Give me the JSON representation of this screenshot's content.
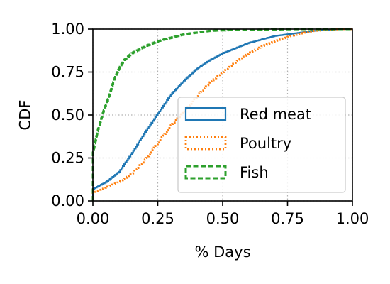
{
  "chart_data": {
    "type": "line",
    "title": "",
    "xlabel": "% Days",
    "ylabel": "CDF",
    "xlim": [
      0,
      1
    ],
    "ylim": [
      0,
      1
    ],
    "x_ticks": [
      "0.00",
      "0.25",
      "0.50",
      "0.75",
      "1.00"
    ],
    "y_ticks": [
      "0.00",
      "0.25",
      "0.50",
      "0.75",
      "1.00"
    ],
    "grid": true,
    "legend_position": "lower-right",
    "series": [
      {
        "name": "Red meat",
        "color": "#1f77b4",
        "style": "solid",
        "x": [
          0,
          0.05,
          0.1,
          0.15,
          0.2,
          0.25,
          0.3,
          0.35,
          0.4,
          0.45,
          0.5,
          0.55,
          0.6,
          0.65,
          0.7,
          0.75,
          0.8,
          0.85,
          0.9,
          0.95,
          1.0
        ],
        "y": [
          0.07,
          0.11,
          0.17,
          0.28,
          0.4,
          0.51,
          0.62,
          0.7,
          0.77,
          0.82,
          0.86,
          0.89,
          0.92,
          0.94,
          0.96,
          0.97,
          0.98,
          0.99,
          0.995,
          1.0,
          1.0
        ]
      },
      {
        "name": "Poultry",
        "color": "#ff7f0e",
        "style": "dotted",
        "x": [
          0,
          0.05,
          0.1,
          0.15,
          0.2,
          0.25,
          0.3,
          0.35,
          0.4,
          0.45,
          0.5,
          0.55,
          0.6,
          0.65,
          0.7,
          0.75,
          0.8,
          0.85,
          0.9,
          0.95,
          1.0
        ],
        "y": [
          0.05,
          0.08,
          0.11,
          0.16,
          0.24,
          0.34,
          0.44,
          0.52,
          0.61,
          0.69,
          0.75,
          0.81,
          0.86,
          0.9,
          0.93,
          0.955,
          0.975,
          0.99,
          0.995,
          1.0,
          1.0
        ]
      },
      {
        "name": "Fish",
        "color": "#2ca02c",
        "style": "dashed",
        "x": [
          0,
          0.01,
          0.02,
          0.04,
          0.06,
          0.08,
          0.1,
          0.12,
          0.15,
          0.2,
          0.25,
          0.3,
          0.35,
          0.4,
          0.45,
          0.5,
          0.6,
          0.7,
          0.8,
          0.9,
          1.0
        ],
        "y": [
          0.28,
          0.35,
          0.42,
          0.52,
          0.6,
          0.7,
          0.77,
          0.82,
          0.86,
          0.9,
          0.93,
          0.95,
          0.97,
          0.98,
          0.99,
          0.993,
          0.996,
          0.998,
          1.0,
          1.0,
          1.0
        ]
      }
    ]
  }
}
